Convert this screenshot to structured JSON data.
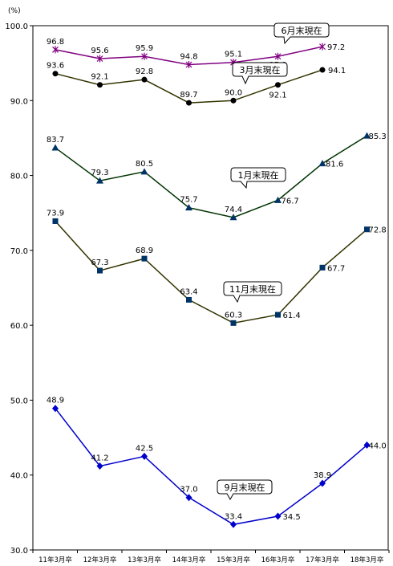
{
  "chart_data": {
    "type": "line",
    "ylabel": "(%)",
    "ylim": [
      30.0,
      100.0
    ],
    "yticks": [
      "30.0",
      "40.0",
      "50.0",
      "60.0",
      "70.0",
      "80.0",
      "90.0",
      "100.0"
    ],
    "categories": [
      "11年3月卒",
      "12年3月卒",
      "13年3月卒",
      "14年3月卒",
      "15年3月卒",
      "16年3月卒",
      "17年3月卒",
      "18年3月卒"
    ],
    "series": [
      {
        "name": "6月末現在",
        "color": "#800080",
        "marker": "star",
        "values": [
          96.8,
          95.6,
          95.9,
          94.8,
          95.1,
          95.9,
          97.2,
          null
        ],
        "labels": [
          "96.8",
          "95.6",
          "95.9",
          "94.8",
          "95.1",
          "95.9",
          "97.2",
          null
        ]
      },
      {
        "name": "3月末現在",
        "color": "#333300",
        "marker": "circle",
        "values": [
          93.6,
          92.1,
          92.8,
          89.7,
          90.0,
          92.1,
          94.1,
          null
        ],
        "labels": [
          "93.6",
          "92.1",
          "92.8",
          "89.7",
          "90.0",
          "92.1",
          "94.1",
          null
        ]
      },
      {
        "name": "1月末現在",
        "color": "#003300",
        "marker": "triangle",
        "values": [
          83.7,
          79.3,
          80.5,
          75.7,
          74.4,
          76.7,
          81.6,
          85.3
        ],
        "labels": [
          "83.7",
          "79.3",
          "80.5",
          "75.7",
          "74.4",
          "76.7",
          "81.6",
          "85.3"
        ]
      },
      {
        "name": "11月末現在",
        "color": "#333300",
        "marker": "square",
        "values": [
          73.9,
          67.3,
          68.9,
          63.4,
          60.3,
          61.4,
          67.7,
          72.8
        ],
        "labels": [
          "73.9",
          "67.3",
          "68.9",
          "63.4",
          "60.3",
          "61.4",
          "67.7",
          "72.8"
        ]
      },
      {
        "name": "9月末現在",
        "color": "#0000cc",
        "marker": "diamond",
        "values": [
          48.9,
          41.2,
          42.5,
          37.0,
          33.4,
          34.5,
          38.9,
          44.0
        ],
        "labels": [
          "48.9",
          "41.2",
          "42.5",
          "37.0",
          "33.4",
          "34.5",
          "38.9",
          "44.0"
        ]
      }
    ]
  }
}
